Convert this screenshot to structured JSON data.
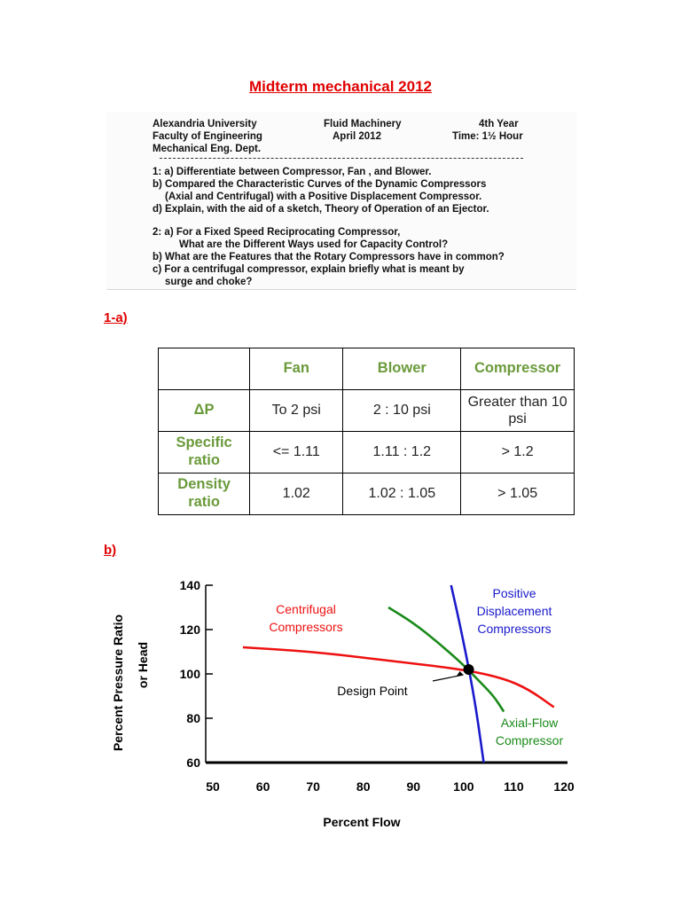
{
  "title": "Midterm mechanical 2012",
  "exam": {
    "header_left": [
      "Alexandria University",
      "Faculty of Engineering",
      "Mechanical Eng. Dept."
    ],
    "header_mid": [
      "Fluid Machinery",
      "April   2012"
    ],
    "header_right": [
      "4th Year",
      "Time: 1½ Hour"
    ],
    "questions": [
      "1: a) Differentiate between Compressor, Fan , and Blower.",
      "b) Compared the Characteristic Curves of the Dynamic Compressors",
      "(Axial and Centrifugal) with a Positive Displacement Compressor.",
      "d) Explain, with the aid of a sketch, Theory of Operation of an Ejector.",
      "2: a) For a Fixed Speed Reciprocating Compressor,",
      "What are the Different Ways used for Capacity Control?",
      "b) What are the Features that the Rotary Compressors have in common?",
      "c) For a centrifugal compressor, explain briefly what is meant by",
      "surge and choke?"
    ]
  },
  "section_a_label": "1-a)",
  "section_b_label": "b)",
  "table": {
    "columns": [
      "",
      "Fan",
      "Blower",
      "Compressor"
    ],
    "rows": [
      {
        "label": "ΔP",
        "cells": [
          "To 2 psi",
          "2 : 10 psi",
          "Greater than 10 psi"
        ]
      },
      {
        "label": "Specific ratio",
        "cells": [
          "<= 1.11",
          "1.11 : 1.2",
          "> 1.2"
        ]
      },
      {
        "label": "Density ratio",
        "cells": [
          "1.02",
          "1.02 : 1.05",
          "> 1.05"
        ]
      }
    ]
  },
  "chart_data": {
    "type": "line",
    "xlabel": "Percent Flow",
    "ylabel": "Percent Pressure Ratio or Head",
    "xlim": [
      50,
      120
    ],
    "ylim": [
      60,
      140
    ],
    "xticks": [
      50,
      60,
      70,
      80,
      90,
      100,
      110,
      120
    ],
    "yticks": [
      60,
      80,
      100,
      120,
      140
    ],
    "grid": false,
    "series": [
      {
        "name": "Centrifugal Compressors",
        "color": "#ee1111",
        "points": [
          [
            56,
            112
          ],
          [
            70,
            110
          ],
          [
            85,
            106
          ],
          [
            100,
            102
          ],
          [
            108,
            98
          ],
          [
            113,
            93
          ],
          [
            118,
            85
          ]
        ]
      },
      {
        "name": "Axial-Flow Compressor",
        "color": "#1a8a1a",
        "points": [
          [
            85,
            130
          ],
          [
            90,
            123
          ],
          [
            95,
            114
          ],
          [
            100,
            104
          ],
          [
            103,
            97
          ],
          [
            106,
            90
          ],
          [
            108,
            83
          ]
        ]
      },
      {
        "name": "Positive Displacement Compressors",
        "color": "#1a1acc",
        "points": [
          [
            97.5,
            140
          ],
          [
            99,
            125
          ],
          [
            101,
            103
          ],
          [
            102.5,
            84
          ],
          [
            104,
            60
          ]
        ]
      }
    ],
    "annotations": [
      {
        "text": "Design Point",
        "x": 101,
        "y": 102
      }
    ]
  }
}
